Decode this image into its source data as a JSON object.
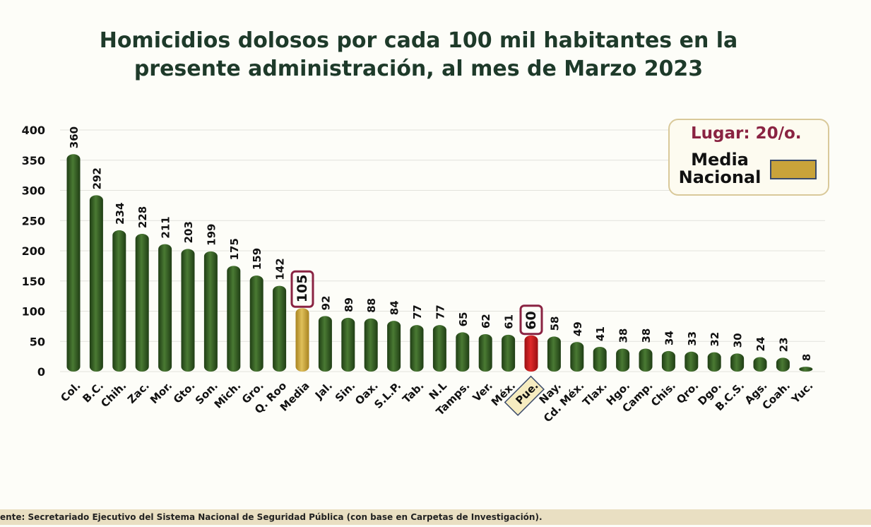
{
  "chart_data": {
    "type": "bar",
    "title": "Homicidios dolosos por cada 100 mil habitantes en la presente administración, al mes de Marzo 2023",
    "categories": [
      "Col.",
      "B.C.",
      "Chih.",
      "Zac.",
      "Mor.",
      "Gto.",
      "Son.",
      "Mich.",
      "Gro.",
      "Q. Roo",
      "Media",
      "Jal.",
      "Sin.",
      "Oax.",
      "S.L.P.",
      "Tab.",
      "N.L",
      "Tamps.",
      "Ver.",
      "Méx.",
      "Pue.",
      "Nay.",
      "Cd. Méx.",
      "Tlax.",
      "Hgo.",
      "Camp.",
      "Chis.",
      "Qro.",
      "Dgo.",
      "B.C.S.",
      "Ags.",
      "Coah.",
      "Yuc."
    ],
    "values": [
      360,
      292,
      234,
      228,
      211,
      203,
      199,
      175,
      159,
      142,
      105,
      92,
      89,
      88,
      84,
      77,
      77,
      65,
      62,
      61,
      60,
      58,
      49,
      41,
      38,
      38,
      34,
      33,
      32,
      30,
      24,
      23,
      8
    ],
    "ylim": [
      0,
      400
    ],
    "yticks": [
      0,
      50,
      100,
      150,
      200,
      250,
      300,
      350,
      400
    ],
    "grid": true,
    "highlighted": {
      "Media": "#c9a33a",
      "Pue.": "#c0161b"
    },
    "bar_color": "#2f5320",
    "legend": {
      "placement": "top-right",
      "lugar": "Lugar: 20/o.",
      "media_label": "Media Nacional",
      "media_color": "#c9a33a"
    }
  },
  "title_line1": "Homicidios dolosos por cada 100 mil habitantes en la",
  "title_line2": "presente administración, al mes de Marzo 2023",
  "footer": "ente:  Secretariado Ejecutivo del Sistema Nacional de Seguridad Pública (con base en Carpetas de Investigación)."
}
